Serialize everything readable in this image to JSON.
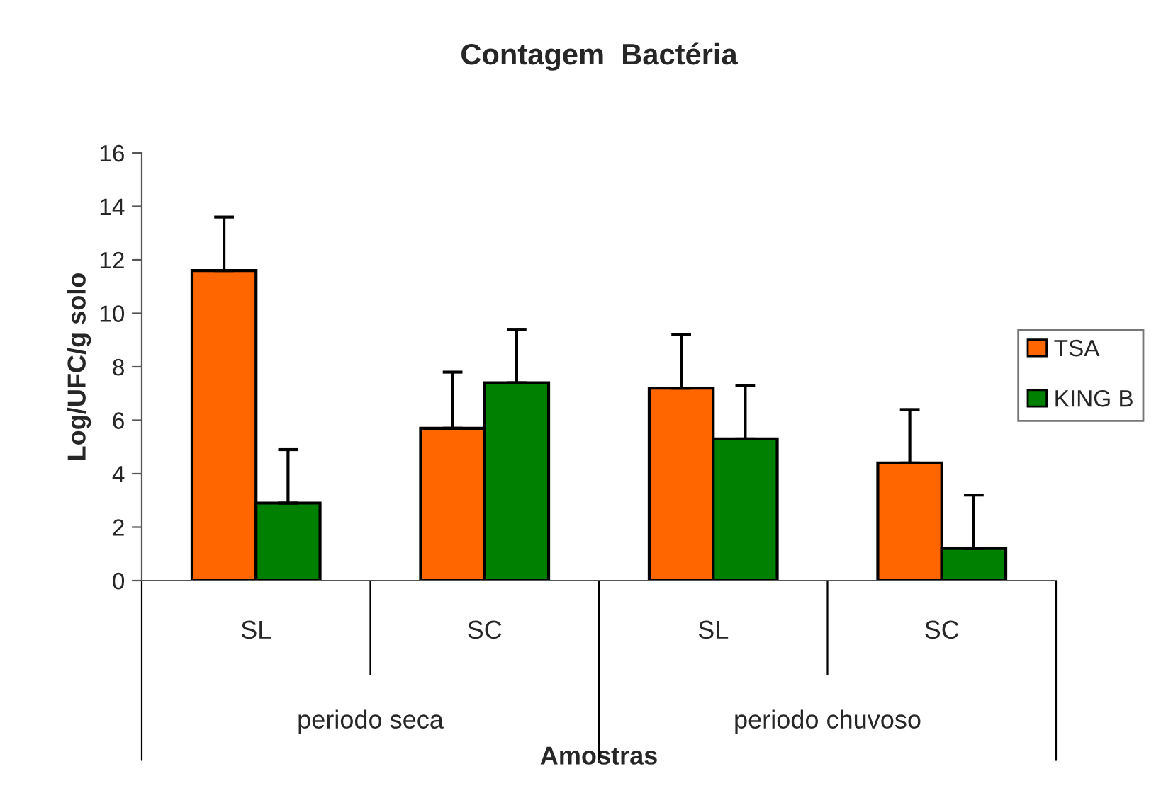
{
  "chart_data": {
    "type": "bar",
    "title": "Contagem  Bactéria",
    "xlabel": "Amostras",
    "ylabel": "Log/UFC/g solo",
    "categories": [
      "SL",
      "SC",
      "SL",
      "SC"
    ],
    "series": [
      {
        "name": "TSA",
        "color": "#ff6600",
        "values": [
          11.6,
          5.7,
          7.2,
          4.4
        ],
        "errors": [
          [
            11.6,
            13.6
          ],
          [
            5.7,
            7.8
          ],
          [
            7.2,
            9.2
          ],
          [
            4.4,
            6.4
          ]
        ]
      },
      {
        "name": "KING B",
        "color": "#008000",
        "values": [
          2.9,
          7.4,
          5.3,
          1.2
        ],
        "errors": [
          [
            2.9,
            4.9
          ],
          [
            7.4,
            9.4
          ],
          [
            5.3,
            7.3
          ],
          [
            1.2,
            3.2
          ]
        ]
      }
    ],
    "annotations": [
      "periodo seca",
      "periodo chuvoso"
    ],
    "ylim": [
      0,
      16
    ],
    "yticks": [
      0,
      2,
      4,
      6,
      8,
      10,
      12,
      14,
      16
    ],
    "grid": false,
    "legend": "right"
  }
}
